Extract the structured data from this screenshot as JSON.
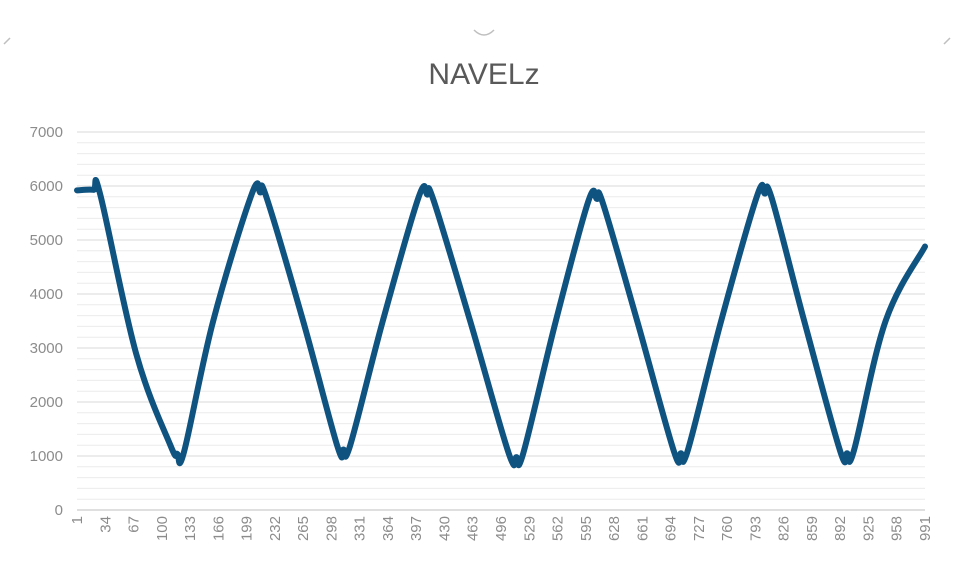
{
  "chart_data": {
    "type": "line",
    "title": "NAVELz",
    "xlabel": "",
    "ylabel": "",
    "ylim": [
      0,
      7000
    ],
    "y_ticks": [
      0,
      1000,
      2000,
      3000,
      4000,
      5000,
      6000,
      7000
    ],
    "x_range": [
      1,
      991
    ],
    "x_tick_labels": [
      "1",
      "34",
      "67",
      "100",
      "133",
      "166",
      "199",
      "232",
      "265",
      "298",
      "331",
      "364",
      "397",
      "430",
      "463",
      "496",
      "529",
      "562",
      "595",
      "628",
      "661",
      "694",
      "727",
      "760",
      "793",
      "826",
      "859",
      "892",
      "925",
      "958",
      "991"
    ],
    "grid": "horizontal",
    "legend": "none",
    "series": [
      {
        "color": "#0f5380",
        "points": [
          [
            1,
            5920
          ],
          [
            20,
            5930
          ],
          [
            28,
            5850
          ],
          [
            70,
            2900
          ],
          [
            110,
            1200
          ],
          [
            118,
            1040
          ],
          [
            126,
            1080
          ],
          [
            160,
            3500
          ],
          [
            205,
            5850
          ],
          [
            215,
            5880
          ],
          [
            222,
            5800
          ],
          [
            265,
            3500
          ],
          [
            305,
            1180
          ],
          [
            312,
            1120
          ],
          [
            320,
            1200
          ],
          [
            358,
            3500
          ],
          [
            400,
            5800
          ],
          [
            410,
            5840
          ],
          [
            417,
            5750
          ],
          [
            460,
            3500
          ],
          [
            505,
            1050
          ],
          [
            514,
            980
          ],
          [
            522,
            1050
          ],
          [
            560,
            3500
          ],
          [
            598,
            5720
          ],
          [
            608,
            5760
          ],
          [
            615,
            5680
          ],
          [
            655,
            3500
          ],
          [
            698,
            1080
          ],
          [
            706,
            1050
          ],
          [
            714,
            1100
          ],
          [
            753,
            3500
          ],
          [
            795,
            5820
          ],
          [
            804,
            5860
          ],
          [
            812,
            5780
          ],
          [
            850,
            3500
          ],
          [
            892,
            1090
          ],
          [
            900,
            1050
          ],
          [
            908,
            1100
          ],
          [
            945,
            3500
          ],
          [
            991,
            4880
          ]
        ]
      }
    ]
  }
}
